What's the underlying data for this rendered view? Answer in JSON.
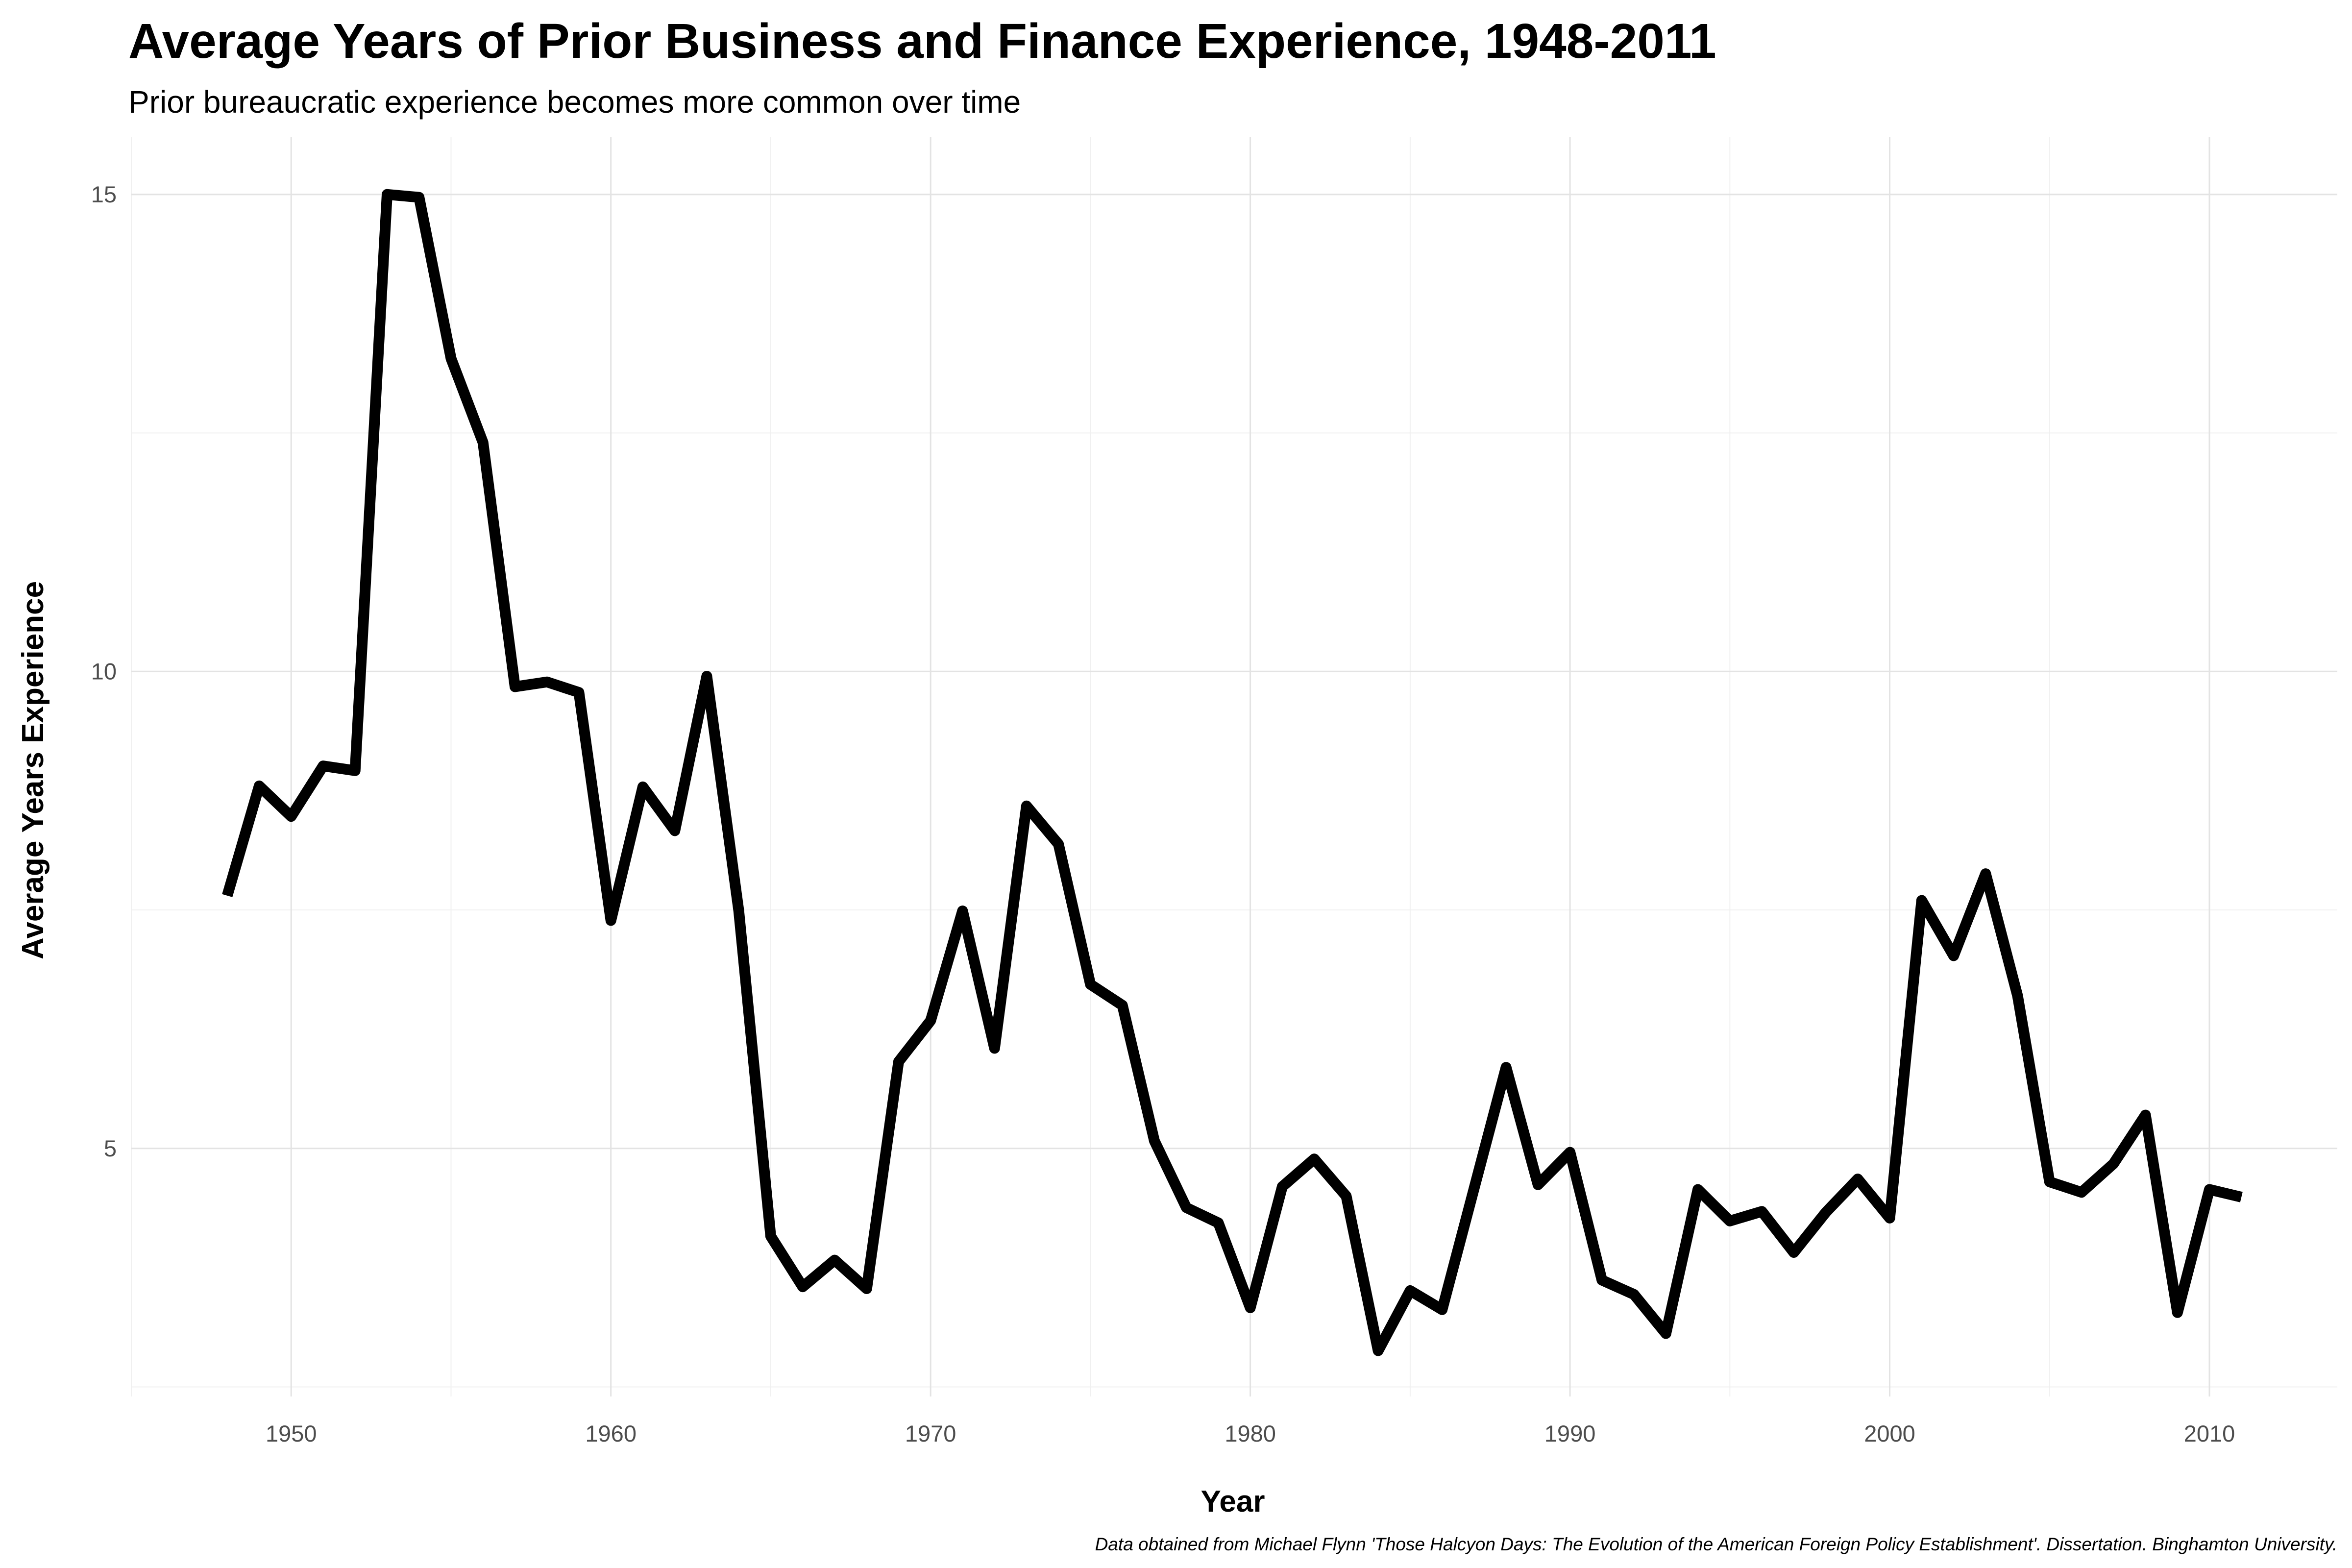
{
  "chart_data": {
    "type": "line",
    "title": "Average Years of Prior Business and Finance Experience, 1948-2011",
    "subtitle": "Prior bureaucratic experience becomes more common over time",
    "xlabel": "Year",
    "ylabel": "Average Years Experience",
    "caption": "Data obtained from Michael Flynn 'Those Halcyon Days: The Evolution of the American Foreign Policy Establishment'. Dissertation. Binghamton University.",
    "xlim": [
      1945,
      2014
    ],
    "ylim": [
      2.4,
      15.6
    ],
    "x_ticks": [
      1950,
      1960,
      1970,
      1980,
      1990,
      2000,
      2010
    ],
    "y_ticks": [
      5,
      10,
      15
    ],
    "grid": true,
    "line_color": "#000000",
    "x": [
      1948,
      1949,
      1950,
      1951,
      1952,
      1953,
      1954,
      1955,
      1956,
      1957,
      1958,
      1959,
      1960,
      1961,
      1962,
      1963,
      1964,
      1965,
      1966,
      1967,
      1968,
      1969,
      1970,
      1971,
      1972,
      1973,
      1974,
      1975,
      1976,
      1977,
      1978,
      1979,
      1980,
      1981,
      1982,
      1983,
      1984,
      1985,
      1986,
      1987,
      1988,
      1989,
      1990,
      1991,
      1992,
      1993,
      1994,
      1995,
      1996,
      1997,
      1998,
      1999,
      2000,
      2001,
      2002,
      2003,
      2004,
      2005,
      2006,
      2007,
      2008,
      2009,
      2010,
      2011
    ],
    "series": [
      {
        "values": [
          7.65,
          8.8,
          8.48,
          9.01,
          8.96,
          15.0,
          14.97,
          13.28,
          12.4,
          9.84,
          9.89,
          9.78,
          7.39,
          8.79,
          8.33,
          9.95,
          7.49,
          4.08,
          3.55,
          3.83,
          3.53,
          5.91,
          6.34,
          7.49,
          6.05,
          8.59,
          8.19,
          6.72,
          6.5,
          5.08,
          4.38,
          4.22,
          3.33,
          4.6,
          4.89,
          4.5,
          2.88,
          3.51,
          3.31,
          4.58,
          5.85,
          4.62,
          4.96,
          3.62,
          3.47,
          3.06,
          4.57,
          4.24,
          4.34,
          3.91,
          4.33,
          4.68,
          4.27,
          7.6,
          7.02,
          7.88,
          6.6,
          4.65,
          4.54,
          4.84,
          5.35,
          3.28,
          4.57,
          4.49
        ]
      }
    ]
  }
}
